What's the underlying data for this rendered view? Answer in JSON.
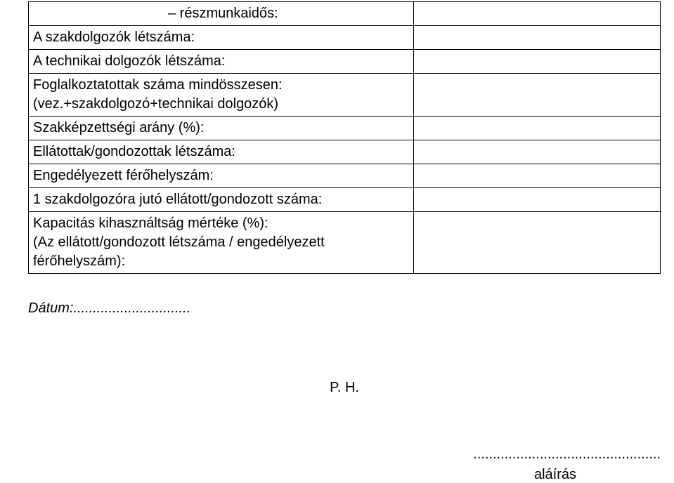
{
  "table": {
    "rows": [
      {
        "label_prefix": "",
        "label_indented": "– részmunkaidős:",
        "value": ""
      },
      {
        "label": "A szakdolgozók létszáma:",
        "value": ""
      },
      {
        "label": "A technikai dolgozók létszáma:",
        "value": ""
      },
      {
        "label": "Foglalkoztatottak száma mindösszesen:\n(vez.+szakdolgozó+technikai dolgozók)",
        "value": ""
      },
      {
        "label": "Szakképzettségi arány (%):",
        "value": ""
      },
      {
        "label": "Ellátottak/gondozottak létszáma:",
        "value": ""
      },
      {
        "label": "Engedélyezett férőhelyszám:",
        "value": ""
      },
      {
        "label": "1 szakdolgozóra jutó ellátott/gondozott száma:",
        "value": ""
      },
      {
        "label": "Kapacitás kihasználtság mértéke (%):\n(Az ellátott/gondozott létszáma / engedélyezett férőhelyszám):",
        "value": ""
      }
    ]
  },
  "datum_label": "Dátum:",
  "datum_dots": "..............................",
  "ph_label": "P. H.",
  "sig_dots": "................................................",
  "sig_label": "aláírás"
}
